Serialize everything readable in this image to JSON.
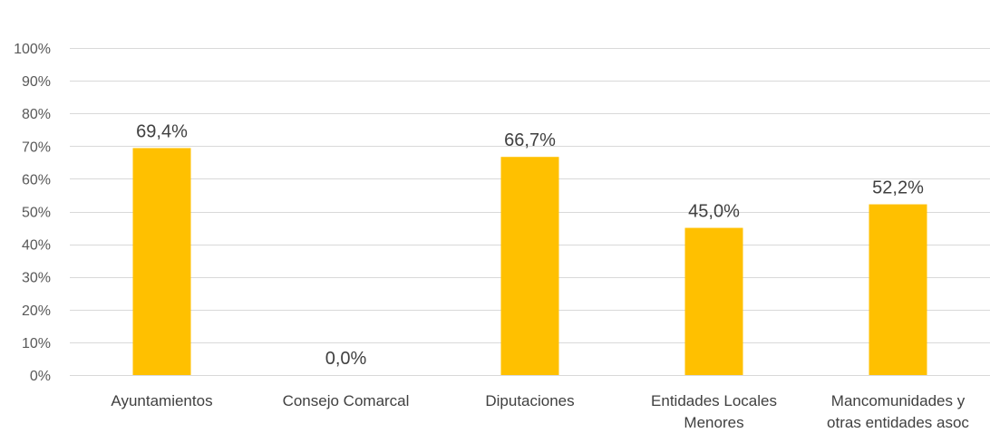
{
  "chart_data": {
    "type": "bar",
    "categories": [
      [
        "Ayuntamientos"
      ],
      [
        "Consejo Comarcal"
      ],
      [
        "Diputaciones"
      ],
      [
        "Entidades Locales",
        "Menores"
      ],
      [
        "Mancomunidades y",
        "otras entidades asoc"
      ]
    ],
    "values": [
      69.4,
      0.0,
      66.7,
      45.0,
      52.2
    ],
    "data_labels": [
      "69,4%",
      "0,0%",
      "66,7%",
      "45,0%",
      "52,2%"
    ],
    "y_ticks": [
      0,
      10,
      20,
      30,
      40,
      50,
      60,
      70,
      80,
      90,
      100
    ],
    "y_tick_labels": [
      "0%",
      "10%",
      "20%",
      "30%",
      "40%",
      "50%",
      "60%",
      "70%",
      "80%",
      "90%",
      "100%"
    ],
    "ylim": [
      0,
      100
    ],
    "title": "",
    "xlabel": "",
    "ylabel": "",
    "grid": true,
    "legend": "none",
    "colors": {
      "bar": "#FFC000",
      "grid": "#D9D9D9",
      "axis": "#D9D9D9"
    }
  }
}
